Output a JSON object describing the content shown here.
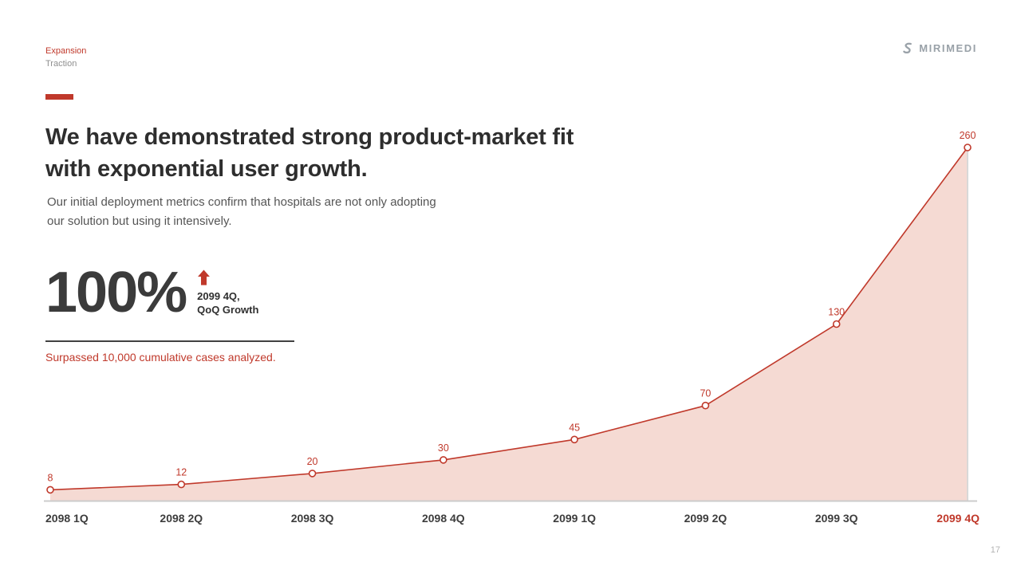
{
  "accent": "#c0392b",
  "header": {
    "section": "Expansion",
    "subsection": "Traction",
    "logo_text": "MIRIMEDI"
  },
  "headline": {
    "line1": "We have demonstrated strong product-market fit",
    "line2": "with exponential user growth."
  },
  "subtext": {
    "line1": "Our initial deployment metrics confirm that hospitals are not only adopting",
    "line2": "our solution but using it intensively."
  },
  "stat": {
    "value": "100%",
    "caption_line1": "2099 4Q,",
    "caption_line2": "QoQ Growth",
    "note": "Surpassed 10,000 cumulative cases analyzed."
  },
  "page_number": "17",
  "chart_data": {
    "type": "area",
    "categories": [
      "2098 1Q",
      "2098 2Q",
      "2098 3Q",
      "2098 4Q",
      "2099 1Q",
      "2099 2Q",
      "2099 3Q",
      "2099 4Q"
    ],
    "values": [
      8,
      12,
      20,
      30,
      45,
      70,
      130,
      260
    ],
    "highlight_category": "2099 4Q",
    "title": "",
    "xlabel": "",
    "ylabel": "",
    "ylim": [
      0,
      275
    ],
    "grid": false,
    "legend": false,
    "line_color": "#c0392b",
    "fill_color": "#f5dad3",
    "marker_fill": "#ffffff",
    "axis_color": "#cccccc",
    "highlight_line_color": "#d8d8d8"
  }
}
